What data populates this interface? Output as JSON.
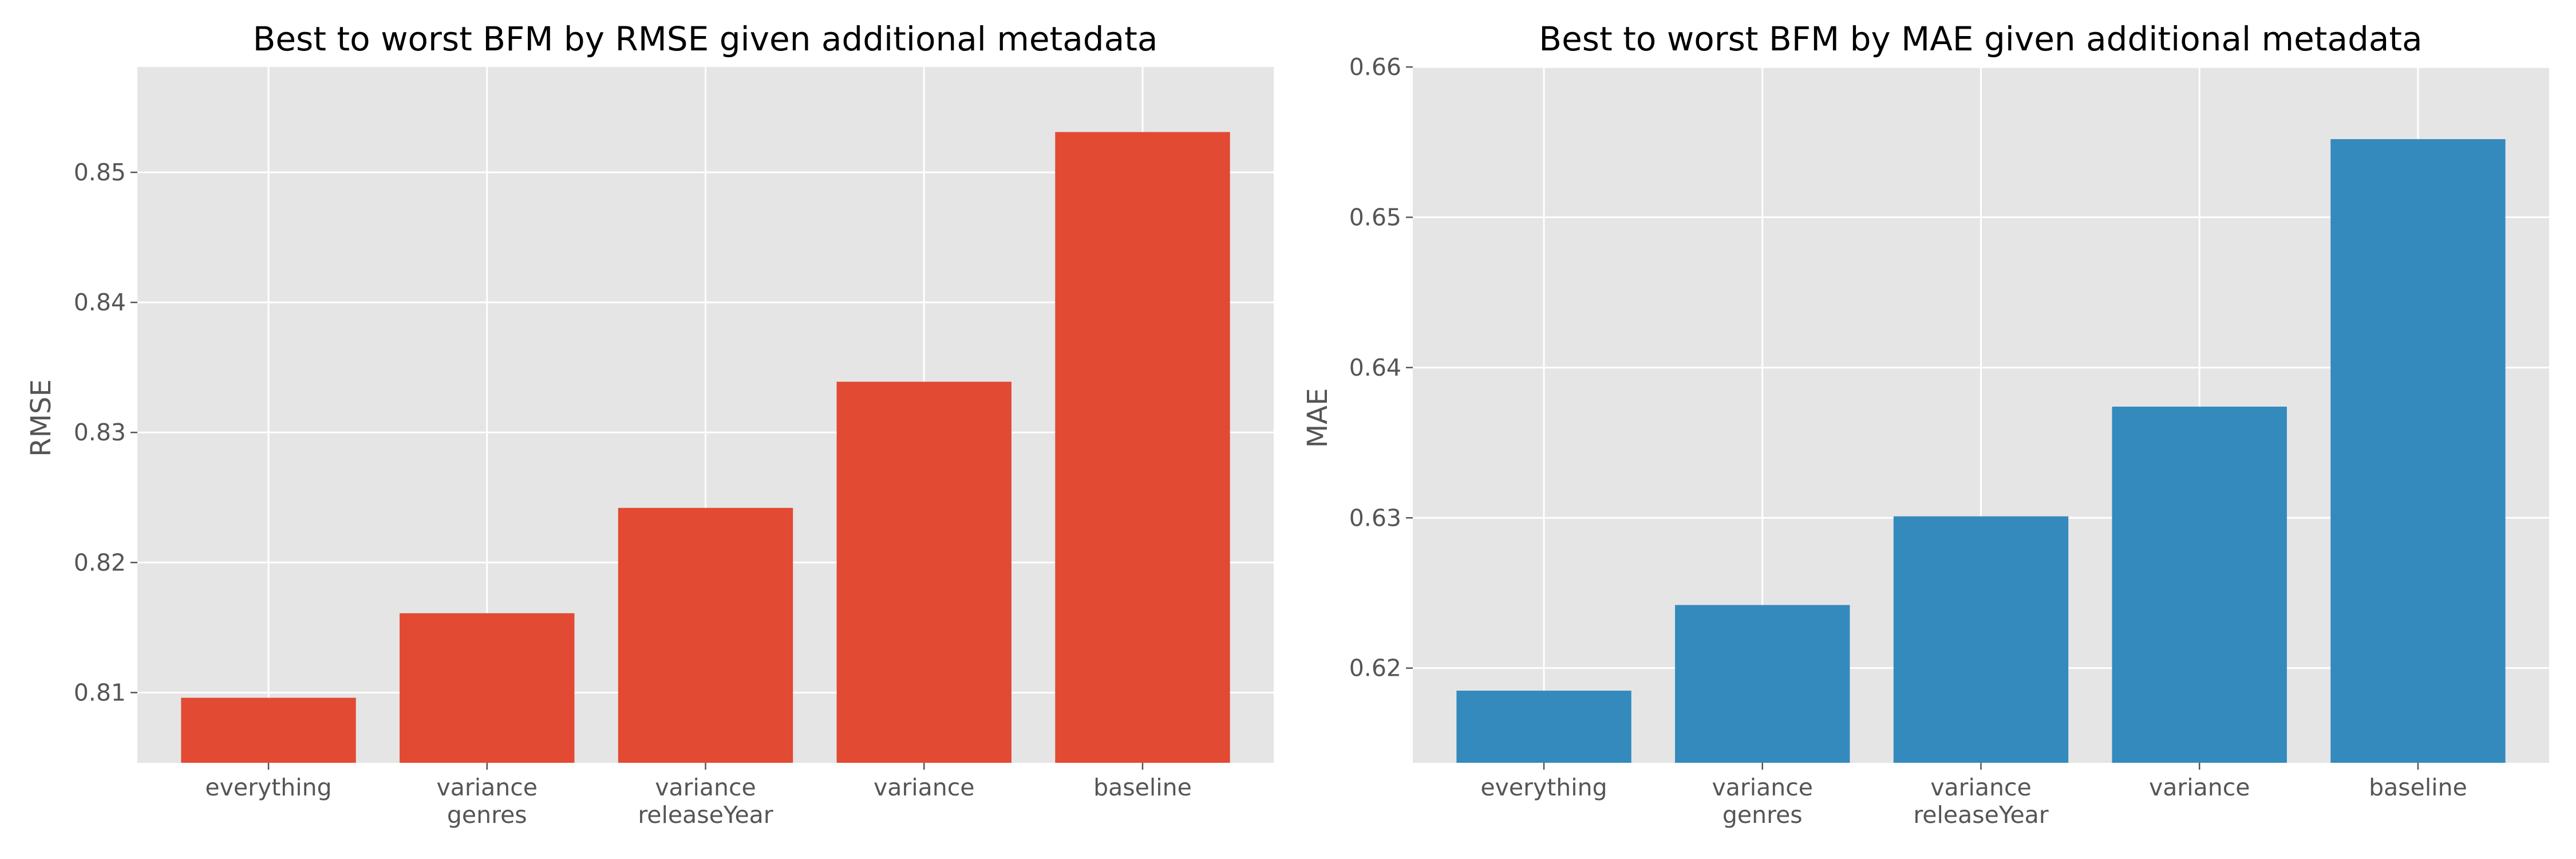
{
  "chart_data": [
    {
      "type": "bar",
      "title": "Best to worst BFM by RMSE given additional metadata",
      "xlabel": "",
      "ylabel": "RMSE",
      "categories": [
        [
          "everything"
        ],
        [
          "variance",
          "genres"
        ],
        [
          "variance",
          "releaseYear"
        ],
        [
          "variance"
        ],
        [
          "baseline"
        ]
      ],
      "values": [
        0.8096,
        0.8161,
        0.8242,
        0.8339,
        0.8531
      ],
      "ylim": [
        0.8046,
        0.8581
      ],
      "yticks": [
        0.81,
        0.82,
        0.83,
        0.84,
        0.85
      ],
      "ytick_labels": [
        "0.81",
        "0.82",
        "0.83",
        "0.84",
        "0.85"
      ],
      "color": "#E24A33",
      "grid": true
    },
    {
      "type": "bar",
      "title": "Best to worst BFM by MAE given additional metadata",
      "xlabel": "",
      "ylabel": "MAE",
      "categories": [
        [
          "everything"
        ],
        [
          "variance",
          "genres"
        ],
        [
          "variance",
          "releaseYear"
        ],
        [
          "variance"
        ],
        [
          "baseline"
        ]
      ],
      "values": [
        0.6185,
        0.6242,
        0.6301,
        0.6374,
        0.6552
      ],
      "ylim": [
        0.6137,
        0.66
      ],
      "yticks": [
        0.62,
        0.63,
        0.64,
        0.65,
        0.66
      ],
      "ytick_labels": [
        "0.62",
        "0.63",
        "0.64",
        "0.65",
        "0.66"
      ],
      "color": "#348ABD",
      "grid": true
    }
  ]
}
